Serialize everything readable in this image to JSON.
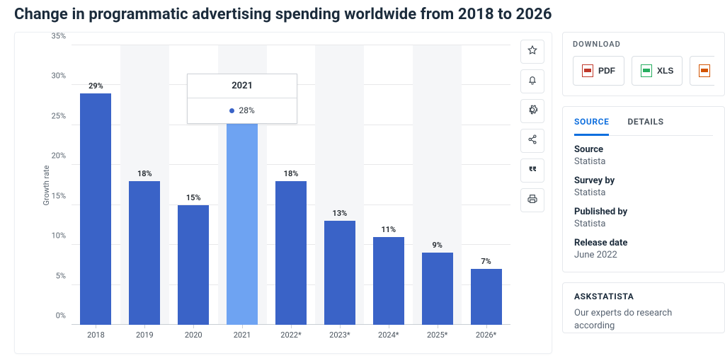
{
  "title": "Change in programmatic advertising spending worldwide from 2018 to 2026",
  "chart": {
    "type": "bar",
    "categories": [
      "2018",
      "2019",
      "2020",
      "2021",
      "2022*",
      "2023*",
      "2024*",
      "2025*",
      "2026*"
    ],
    "values": [
      29,
      18,
      15,
      28,
      18,
      13,
      11,
      9,
      7
    ],
    "value_labels": [
      "29%",
      "18%",
      "15%",
      "28%",
      "18%",
      "13%",
      "11%",
      "9%",
      "7%"
    ],
    "highlight_index": 3,
    "bar_color": "#3a63c7",
    "bar_color_highlight": "#6ea3f2",
    "ylabel": "Growth rate",
    "ylim": [
      0,
      35
    ],
    "ytick_step": 5,
    "ytick_labels": [
      "0%",
      "5%",
      "10%",
      "15%",
      "20%",
      "25%",
      "30%",
      "35%"
    ],
    "gridline_color": "#e8e8ea",
    "axis_color": "#c9ced4",
    "alt_band_color": "#f5f6f8",
    "background_color": "#ffffff",
    "label_fontsize": 11,
    "tooltip": {
      "header": "2021",
      "dot_color": "#3a63c7",
      "value": "28%"
    }
  },
  "actions": [
    {
      "name": "favorite",
      "icon": "star"
    },
    {
      "name": "notify",
      "icon": "bell"
    },
    {
      "name": "settings",
      "icon": "gear"
    },
    {
      "name": "share",
      "icon": "share"
    },
    {
      "name": "cite",
      "icon": "quote"
    },
    {
      "name": "print",
      "icon": "print"
    }
  ],
  "download": {
    "title": "DOWNLOAD",
    "buttons": [
      {
        "label": "PDF",
        "kind": "pdf"
      },
      {
        "label": "XLS",
        "kind": "xls"
      },
      {
        "label": "P",
        "kind": "ppt"
      }
    ]
  },
  "source_tabs": {
    "active": "SOURCE",
    "items": [
      "SOURCE",
      "DETAILS"
    ]
  },
  "source_meta": [
    {
      "label": "Source",
      "value": "Statista"
    },
    {
      "label": "Survey by",
      "value": "Statista"
    },
    {
      "label": "Published by",
      "value": "Statista"
    },
    {
      "label": "Release date",
      "value": "June 2022"
    }
  ],
  "ask": {
    "title": "ASKSTATISTA",
    "body": "Our experts do research according"
  }
}
